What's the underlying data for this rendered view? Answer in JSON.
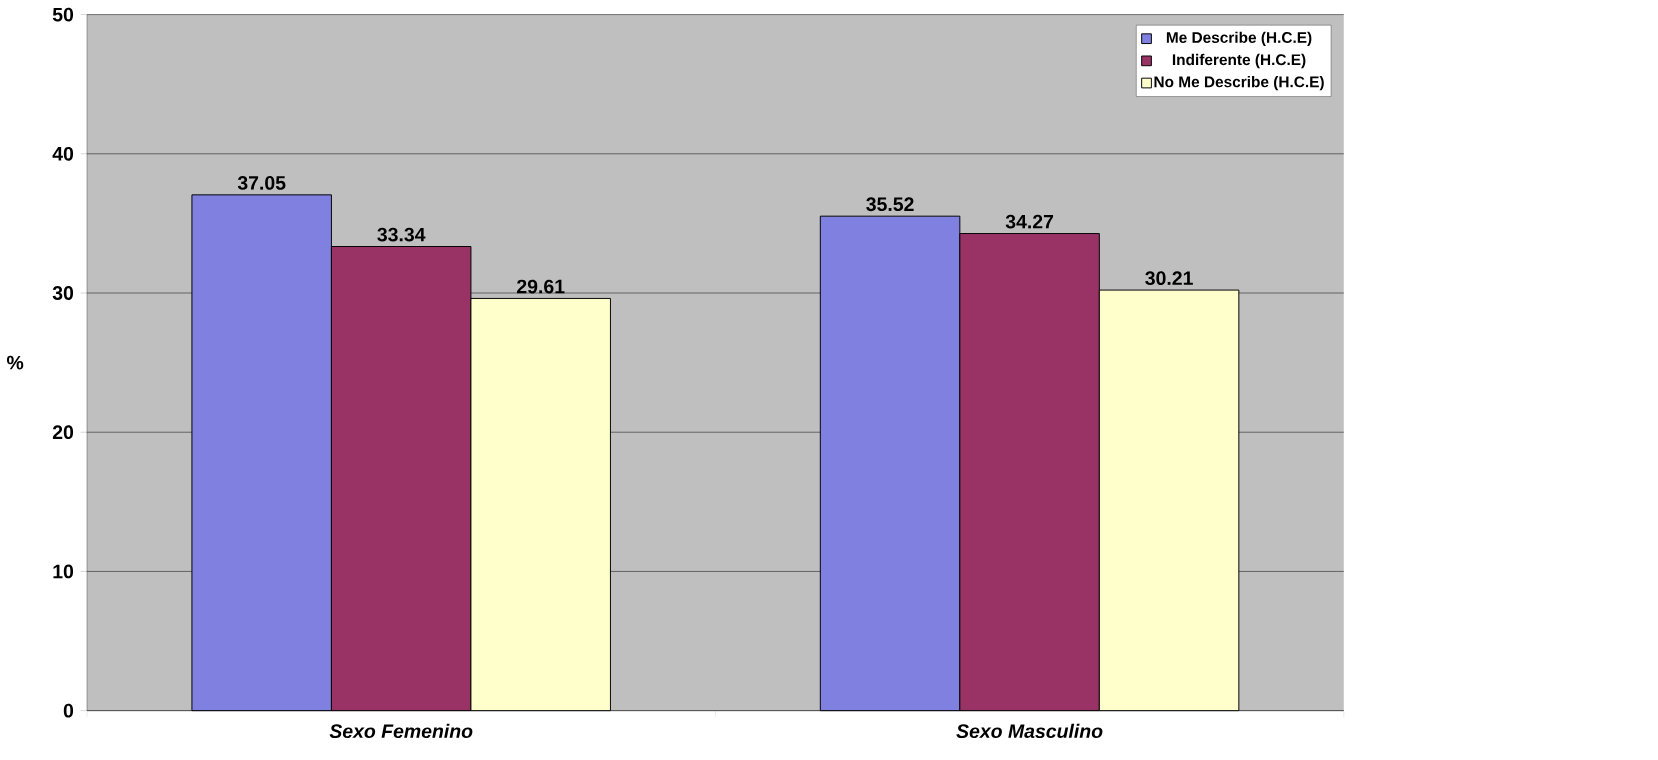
{
  "chart_data": {
    "type": "bar",
    "ylabel": "%",
    "categories": [
      "Sexo Femenino",
      "Sexo Masculino"
    ],
    "series": [
      {
        "name": "Me Describe (H.C.E)",
        "color": "#8080e0",
        "values": [
          37.05,
          35.52
        ]
      },
      {
        "name": "Indiferente (H.C.E)",
        "color": "#993366",
        "values": [
          33.34,
          34.27
        ]
      },
      {
        "name": "No Me Describe (H.C.E)",
        "color": "#ffffcc",
        "values": [
          29.61,
          30.21
        ]
      }
    ],
    "ylim": [
      0,
      50
    ],
    "yticks": [
      0,
      10,
      20,
      30,
      40,
      50
    ],
    "grid": "y",
    "legend": "top right",
    "data_labels": true
  }
}
